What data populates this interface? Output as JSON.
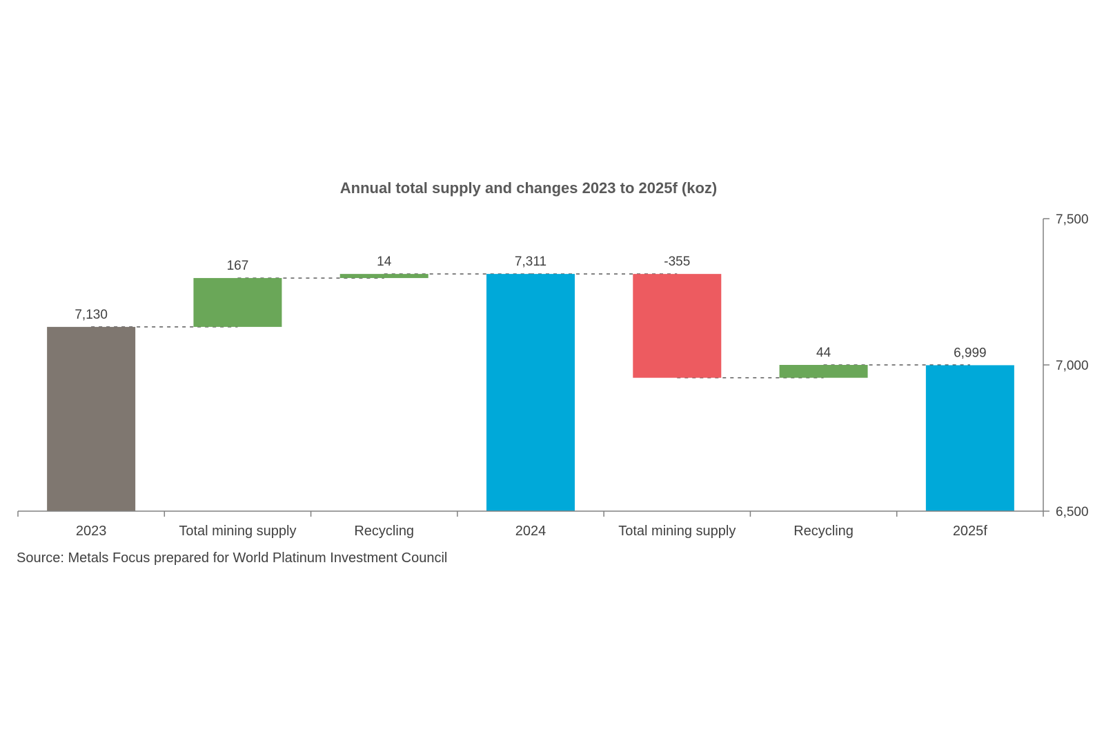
{
  "chart_data": {
    "type": "bar",
    "subtype": "waterfall",
    "title": "Annual total supply and changes 2023 to 2025f (koz)",
    "categories": [
      "2023",
      "Total mining supply",
      "Recycling",
      "2024",
      "Total mining supply",
      "Recycling",
      "2025f"
    ],
    "values": [
      7130,
      167,
      14,
      7311,
      -355,
      44,
      6999
    ],
    "data_labels": [
      "7,130",
      "167",
      "14",
      "7,311",
      "-355",
      "44",
      "6,999"
    ],
    "bar_kinds": [
      "total",
      "increase",
      "increase",
      "total",
      "decrease",
      "increase",
      "total"
    ],
    "ylim": [
      6500,
      7500
    ],
    "y_ticks": [
      6500,
      7000,
      7500
    ],
    "y_tick_labels": [
      "6,500",
      "7,000",
      "7,500"
    ],
    "y_axis_position": "right",
    "grid": false,
    "legend": "none",
    "connector_lines": "dashed",
    "colors": {
      "first_total": "#7f7770",
      "total": "#00a9d9",
      "increase": "#6aa758",
      "decrease": "#ed5b60",
      "axis": "#808080",
      "connector": "#595959"
    }
  },
  "footer": {
    "source": "Source: Metals Focus prepared for World Platinum Investment Council"
  }
}
